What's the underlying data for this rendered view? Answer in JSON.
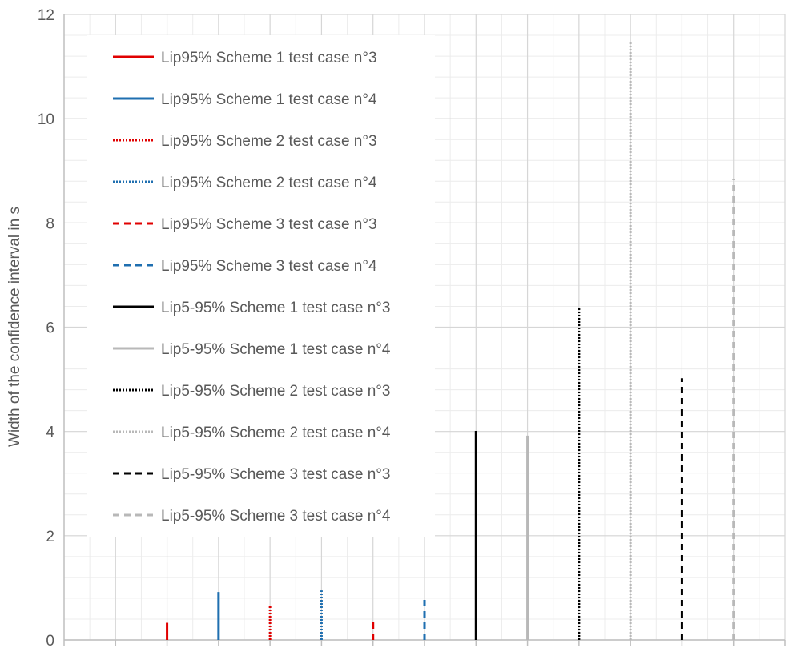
{
  "chart_data": {
    "type": "bar",
    "ylabel": "Width of the  confidence interval in s",
    "ylim": [
      0,
      12
    ],
    "yticks": [
      "0",
      "2",
      "4",
      "6",
      "8",
      "10",
      "12"
    ],
    "grid": true,
    "legend_position": "top-left",
    "series": [
      {
        "name": "Lip95% Scheme 1 test case n°3",
        "value": 0.33,
        "color": "#e00000",
        "style": "solid"
      },
      {
        "name": "Lip95% Scheme 1 test case n°4",
        "value": 0.92,
        "color": "#1f6fb0",
        "style": "solid"
      },
      {
        "name": "Lip95% Scheme 2 test case n°3",
        "value": 0.67,
        "color": "#e00000",
        "style": "dotted"
      },
      {
        "name": "Lip95% Scheme 2 test case n°4",
        "value": 0.95,
        "color": "#1f6fb0",
        "style": "dotted"
      },
      {
        "name": "Lip95% Scheme 3 test case n°3",
        "value": 0.42,
        "color": "#e00000",
        "style": "dashed"
      },
      {
        "name": "Lip95% Scheme 3 test case n°4",
        "value": 0.81,
        "color": "#1f6fb0",
        "style": "dashed"
      },
      {
        "name": "Lip5-95% Scheme 1 test case n°3",
        "value": 4.01,
        "color": "#000000",
        "style": "solid"
      },
      {
        "name": "Lip5-95% Scheme 1 test case n°4",
        "value": 3.92,
        "color": "#b8b8b8",
        "style": "solid"
      },
      {
        "name": "Lip5-95% Scheme 2 test case n°3",
        "value": 6.38,
        "color": "#000000",
        "style": "dotted"
      },
      {
        "name": "Lip5-95% Scheme 2 test case n°4",
        "value": 11.48,
        "color": "#b8b8b8",
        "style": "dotted"
      },
      {
        "name": "Lip5-95% Scheme 3 test case n°3",
        "value": 5.02,
        "color": "#000000",
        "style": "dashed"
      },
      {
        "name": "Lip5-95% Scheme 3 test case n°4",
        "value": 8.85,
        "color": "#b8b8b8",
        "style": "dashed"
      }
    ]
  }
}
